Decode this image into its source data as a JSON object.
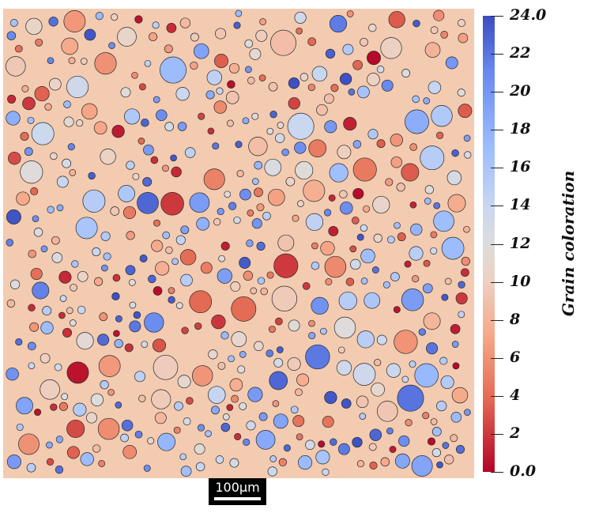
{
  "colorbar": {
    "title": "Grain coloration",
    "min": 0.0,
    "max": 24.0,
    "tick_labels": [
      "24.0",
      "22",
      "20",
      "18",
      "16",
      "14",
      "12",
      "10",
      "8",
      "6",
      "4",
      "2",
      "0.0"
    ],
    "tick_values": [
      24,
      22,
      20,
      18,
      16,
      14,
      12,
      10,
      8,
      6,
      4,
      2,
      0
    ]
  },
  "scale_bar": {
    "label": "100μm"
  },
  "colors": {
    "background": "#f3cbb1",
    "cool_end": "#3b4cc0",
    "warm_end": "#b40426"
  }
}
